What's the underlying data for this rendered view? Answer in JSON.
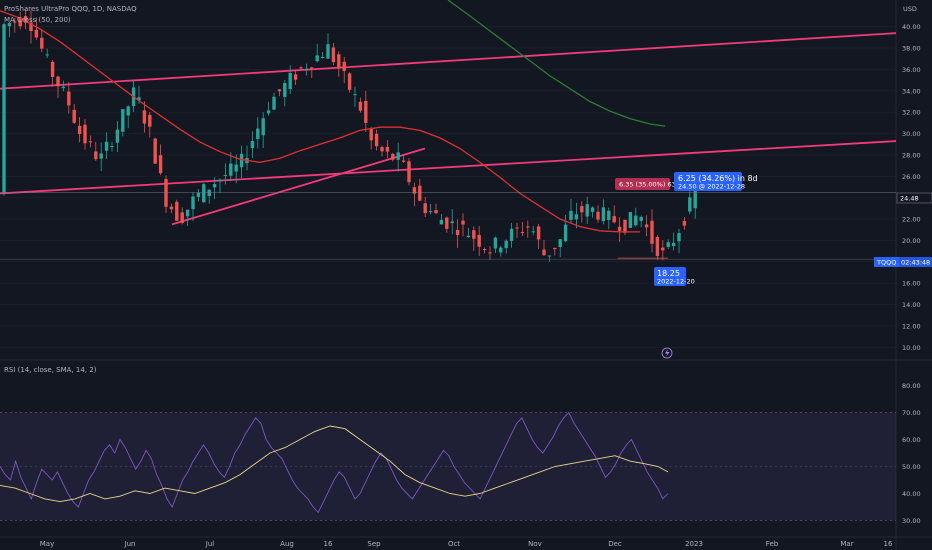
{
  "header": {
    "title": "ProShares UltraPro QQQ, 1D, NASDAQ",
    "ma_label": "MA Cross (50, 200)",
    "rsi_label": "RSI (14, close, SMA, 14, 2)"
  },
  "colors": {
    "background": "#131722",
    "up": "#26a69a",
    "down": "#ef5350",
    "trendline": "#f23b7a",
    "ma_fast": "#e03131",
    "ma_slow": "#2e7d32",
    "rsi": "#7e57c2",
    "rsi_ma": "#e8d98a"
  },
  "chart_data": {
    "type": "line",
    "currency": "USD",
    "price_axis": {
      "ylim": [
        9.0,
        42.5
      ],
      "ticks": [
        "40.00",
        "38.00",
        "36.00",
        "34.00",
        "32.00",
        "30.00",
        "28.00",
        "26.00",
        "24.00",
        "22.00",
        "20.00",
        "18.00",
        "16.00",
        "14.00",
        "12.00",
        "10.00"
      ]
    },
    "x_labels": [
      "May",
      "Jun",
      "Jul",
      "Aug",
      "16",
      "Sep",
      "Oct",
      "Nov",
      "Dec",
      "2023",
      "Feb",
      "Mar",
      "16"
    ],
    "last_price": {
      "symbol": "TQQQ",
      "value": "24.48",
      "countdown": "02:43:48",
      "reference": "18.25"
    },
    "moving_average_50": [
      [
        0,
        41.5
      ],
      [
        20,
        40.8
      ],
      [
        40,
        39.8
      ],
      [
        60,
        38.6
      ],
      [
        80,
        37.2
      ],
      [
        100,
        35.8
      ],
      [
        120,
        34.4
      ],
      [
        140,
        33.0
      ],
      [
        160,
        31.7
      ],
      [
        180,
        30.4
      ],
      [
        200,
        29.2
      ],
      [
        220,
        28.3
      ],
      [
        240,
        27.6
      ],
      [
        260,
        27.3
      ],
      [
        280,
        27.7
      ],
      [
        300,
        28.4
      ],
      [
        320,
        29.0
      ],
      [
        340,
        29.6
      ],
      [
        360,
        30.3
      ],
      [
        380,
        30.6
      ],
      [
        400,
        30.6
      ],
      [
        420,
        30.3
      ],
      [
        440,
        29.6
      ],
      [
        460,
        28.6
      ],
      [
        480,
        27.3
      ],
      [
        500,
        25.9
      ],
      [
        520,
        24.4
      ],
      [
        540,
        23.2
      ],
      [
        560,
        22.0
      ],
      [
        580,
        21.3
      ],
      [
        600,
        20.9
      ],
      [
        620,
        20.8
      ],
      [
        640,
        20.8
      ]
    ],
    "moving_average_200": [
      [
        448,
        42.5
      ],
      [
        470,
        41.0
      ],
      [
        490,
        39.6
      ],
      [
        510,
        38.2
      ],
      [
        530,
        36.8
      ],
      [
        550,
        35.4
      ],
      [
        570,
        34.2
      ],
      [
        590,
        33.0
      ],
      [
        610,
        32.1
      ],
      [
        630,
        31.4
      ],
      [
        650,
        30.9
      ],
      [
        665,
        30.7
      ]
    ],
    "trendlines": [
      {
        "name": "upper channel",
        "start": [
          0,
          34.2
        ],
        "end": [
          896,
          39.4
        ]
      },
      {
        "name": "lower channel",
        "start": [
          0,
          24.4
        ],
        "end": [
          896,
          29.3
        ]
      },
      {
        "name": "rising support",
        "start": [
          172,
          21.5
        ],
        "end": [
          425,
          28.6
        ]
      }
    ],
    "annotations": [
      {
        "name": "drawdown range",
        "text": "6.35 (35.00%) 635"
      },
      {
        "name": "gain range",
        "text": "6.25 (34.26%) in 8d",
        "subtext": "24.50 @ 2022-12-28"
      },
      {
        "name": "low marker",
        "text": "18.25",
        "subtext": "2022-12-20"
      }
    ],
    "rsi": {
      "ylim": [
        25,
        85
      ],
      "ticks": [
        "80.00",
        "70.00",
        "60.00",
        "50.00",
        "40.00",
        "30.00"
      ],
      "upper_band": 70,
      "lower_band": 30,
      "rsi_values": [
        50,
        47,
        45,
        52,
        46,
        42,
        38,
        44,
        49,
        47,
        45,
        48,
        44,
        40,
        37,
        35,
        40,
        45,
        48,
        52,
        56,
        58,
        55,
        60,
        57,
        53,
        49,
        52,
        56,
        53,
        47,
        43,
        38,
        35,
        40,
        45,
        48,
        52,
        55,
        58,
        55,
        51,
        48,
        46,
        50,
        55,
        58,
        62,
        65,
        68,
        66,
        60,
        57,
        55,
        53,
        49,
        45,
        42,
        40,
        38,
        35,
        33,
        37,
        41,
        45,
        48,
        46,
        42,
        38,
        40,
        44,
        48,
        52,
        55,
        53,
        49,
        45,
        42,
        40,
        38,
        41,
        44,
        47,
        50,
        53,
        56,
        54,
        50,
        47,
        44,
        42,
        40,
        38,
        42,
        46,
        50,
        54,
        58,
        62,
        66,
        68,
        64,
        60,
        57,
        55,
        58,
        61,
        65,
        68,
        70,
        66,
        63,
        60,
        57,
        54,
        50,
        46,
        48,
        51,
        55,
        58,
        60,
        56,
        52,
        48,
        45,
        42,
        38,
        40
      ],
      "sma_values": [
        [
          0,
          43
        ],
        [
          15,
          42
        ],
        [
          30,
          40
        ],
        [
          45,
          38
        ],
        [
          60,
          37
        ],
        [
          75,
          38
        ],
        [
          90,
          40
        ],
        [
          105,
          38
        ],
        [
          120,
          39
        ],
        [
          135,
          41
        ],
        [
          150,
          40
        ],
        [
          165,
          42
        ],
        [
          180,
          41
        ],
        [
          195,
          40
        ],
        [
          210,
          42
        ],
        [
          225,
          44
        ],
        [
          240,
          47
        ],
        [
          255,
          51
        ],
        [
          270,
          55
        ],
        [
          285,
          57
        ],
        [
          300,
          60
        ],
        [
          315,
          63
        ],
        [
          330,
          65
        ],
        [
          345,
          64
        ],
        [
          360,
          60
        ],
        [
          375,
          56
        ],
        [
          390,
          52
        ],
        [
          405,
          47
        ],
        [
          420,
          44
        ],
        [
          435,
          42
        ],
        [
          450,
          40
        ],
        [
          465,
          39
        ],
        [
          480,
          40
        ],
        [
          495,
          42
        ],
        [
          510,
          44
        ],
        [
          525,
          46
        ],
        [
          540,
          48
        ],
        [
          555,
          50
        ],
        [
          570,
          51
        ],
        [
          585,
          52
        ],
        [
          600,
          53
        ],
        [
          615,
          54
        ],
        [
          630,
          52
        ],
        [
          645,
          51
        ],
        [
          658,
          50
        ],
        [
          668,
          48
        ]
      ]
    }
  }
}
